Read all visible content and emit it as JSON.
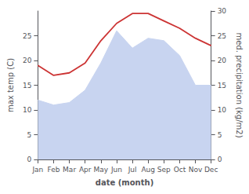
{
  "chart_data": {
    "type": "line",
    "xlabel": "date (month)",
    "ylabel": "max temp (C)",
    "y2label": "med. precipitation (kg/m2)",
    "categories": [
      "Jan",
      "Feb",
      "Mar",
      "Apr",
      "May",
      "Jun",
      "Jul",
      "Aug",
      "Sep",
      "Oct",
      "Nov",
      "Dec"
    ],
    "series": [
      {
        "type": "area",
        "color": "#c8d4f0",
        "values": [
          12.0,
          11.0,
          11.5,
          14.0,
          19.5,
          26.0,
          22.5,
          24.5,
          24.0,
          21.0,
          15.0,
          15.0
        ]
      },
      {
        "type": "line",
        "color": "#cc3333",
        "axis": "y2",
        "values": [
          19.0,
          17.0,
          17.5,
          19.5,
          24.0,
          27.5,
          29.5,
          29.5,
          28.0,
          26.5,
          24.5,
          23.0
        ]
      }
    ],
    "ylim": [
      0,
      30
    ],
    "yticks": [
      0,
      5,
      10,
      15,
      20,
      25
    ],
    "y2lim": [
      0,
      30
    ],
    "y2ticks": [
      0,
      5,
      10,
      15,
      20,
      25,
      30
    ],
    "grid": false
  }
}
